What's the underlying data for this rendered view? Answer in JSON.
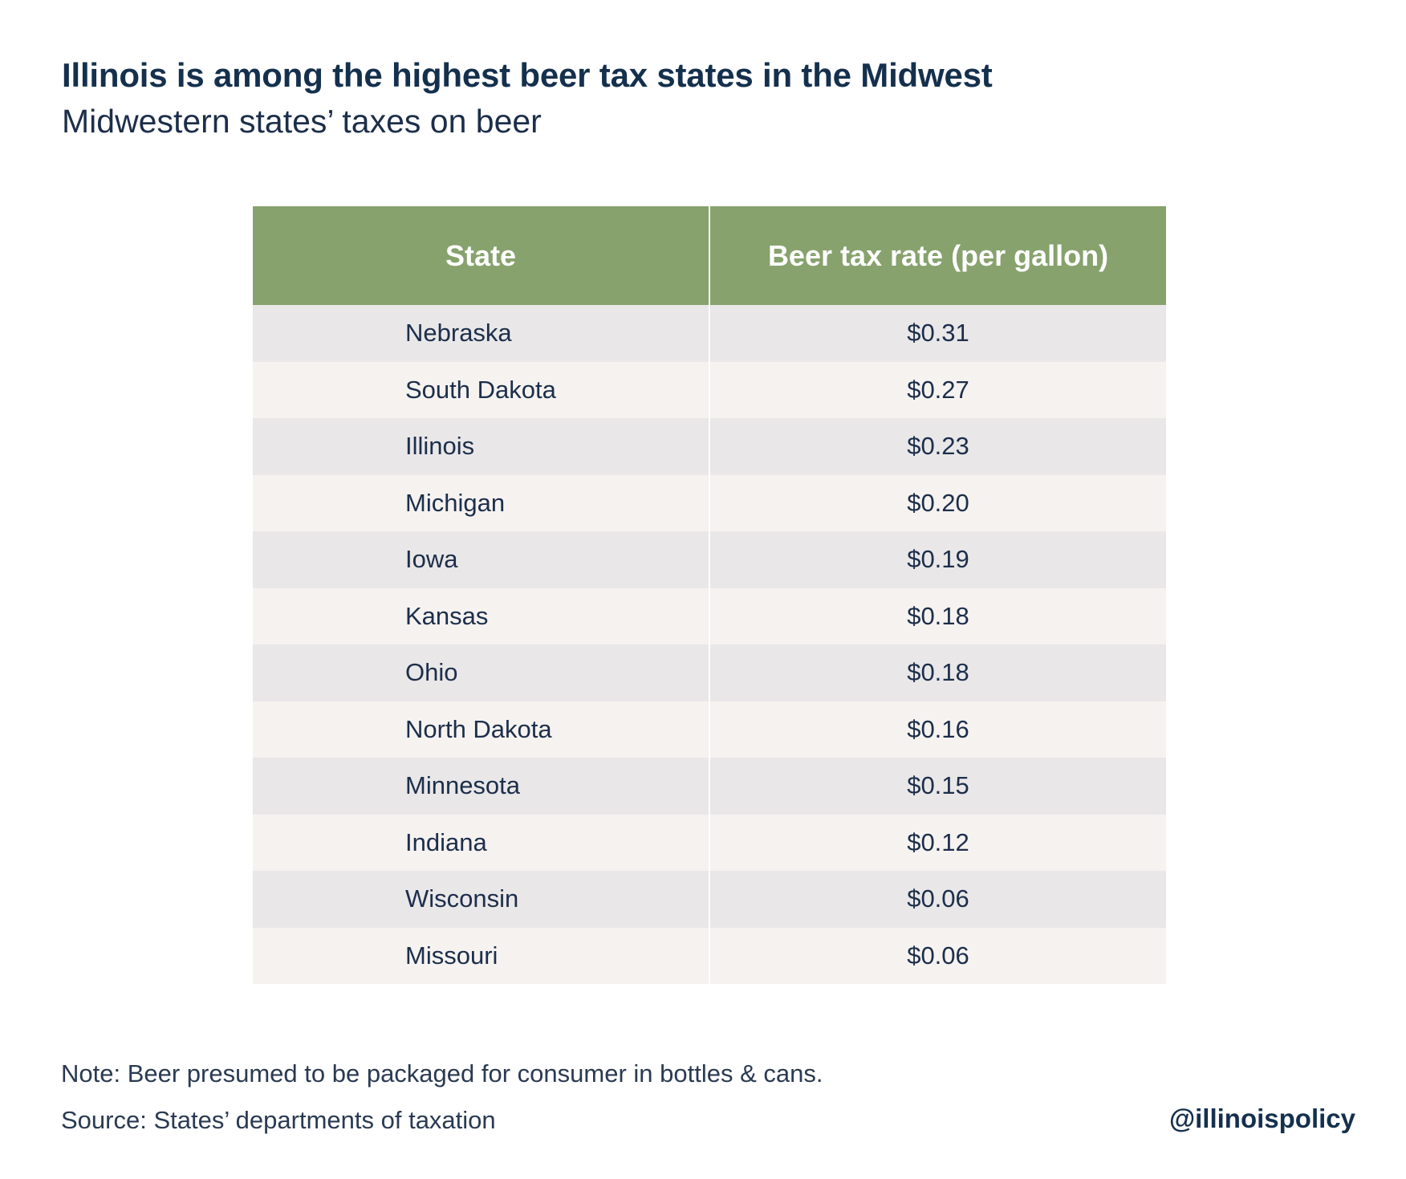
{
  "header": {
    "title": "Illinois is among the highest beer tax states in the Midwest",
    "subtitle": "Midwestern states’ taxes on beer"
  },
  "table": {
    "columns": [
      "State",
      "Beer tax rate (per gallon)"
    ],
    "rows": [
      {
        "state": "Nebraska",
        "rate": "$0.31"
      },
      {
        "state": "South Dakota",
        "rate": "$0.27"
      },
      {
        "state": "Illinois",
        "rate": "$0.23"
      },
      {
        "state": "Michigan",
        "rate": "$0.20"
      },
      {
        "state": "Iowa",
        "rate": "$0.19"
      },
      {
        "state": "Kansas",
        "rate": "$0.18"
      },
      {
        "state": "Ohio",
        "rate": "$0.18"
      },
      {
        "state": "North Dakota",
        "rate": "$0.16"
      },
      {
        "state": "Minnesota",
        "rate": "$0.15"
      },
      {
        "state": "Indiana",
        "rate": "$0.12"
      },
      {
        "state": "Wisconsin",
        "rate": "$0.06"
      },
      {
        "state": "Missouri",
        "rate": "$0.06"
      }
    ]
  },
  "footer": {
    "note": "Note: Beer presumed to be packaged for consumer in bottles & cans.",
    "source": "Source: States’ departments of taxation",
    "handle": "@illinoispolicy"
  },
  "colors": {
    "header_green": "#87a26d",
    "row_odd": "#e9e7e8",
    "row_even": "#f5f2f0",
    "text_navy": "#14304d"
  },
  "chart_data": {
    "type": "table",
    "title": "Illinois is among the highest beer tax states in the Midwest",
    "subtitle": "Midwestern states’ taxes on beer",
    "columns": [
      "State",
      "Beer tax rate (per gallon)"
    ],
    "categories": [
      "Nebraska",
      "South Dakota",
      "Illinois",
      "Michigan",
      "Iowa",
      "Kansas",
      "Ohio",
      "North Dakota",
      "Minnesota",
      "Indiana",
      "Wisconsin",
      "Missouri"
    ],
    "values": [
      0.31,
      0.27,
      0.23,
      0.2,
      0.19,
      0.18,
      0.18,
      0.16,
      0.15,
      0.12,
      0.06,
      0.06
    ]
  }
}
